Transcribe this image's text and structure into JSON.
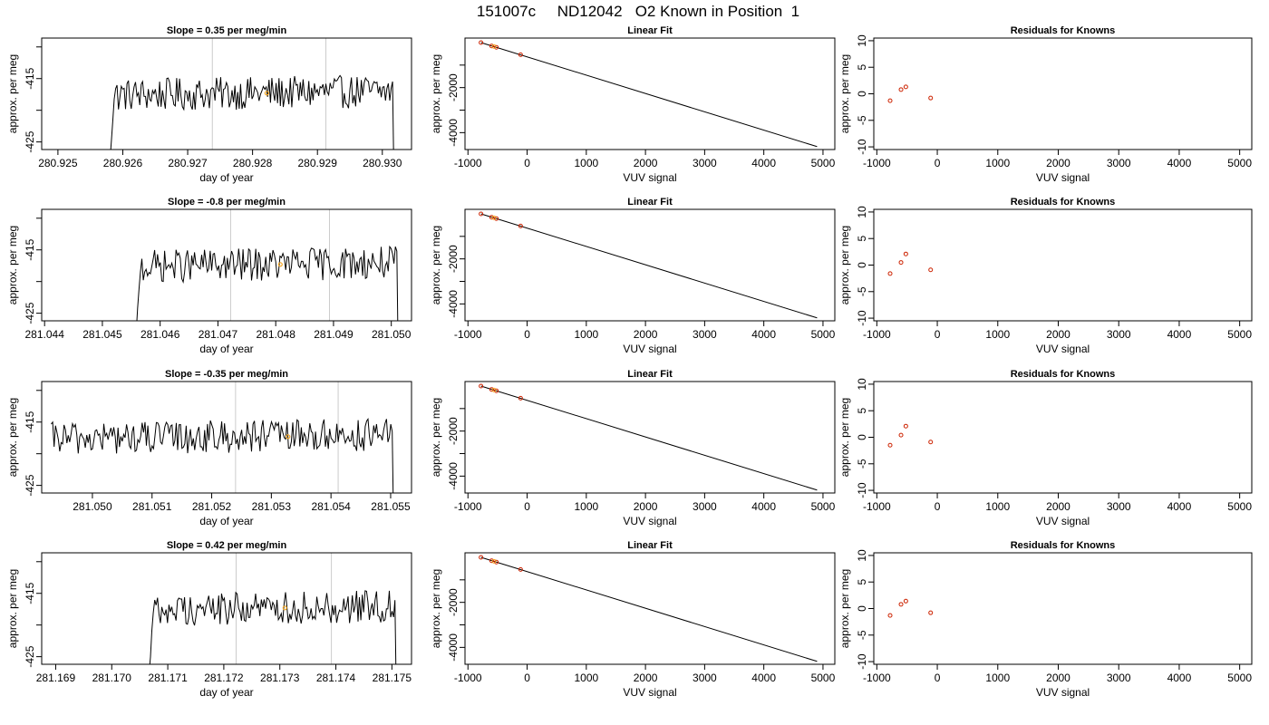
{
  "title": "151007c     ND12042   O2 Known in Position  1",
  "colors": {
    "trace": "#000000",
    "gridline": "#cccccc",
    "highlight": "#f5a623",
    "points": "#cc2200"
  },
  "chart_data": [
    {
      "type": "line",
      "title": "Slope =  0.35  per meg/min",
      "xlabel": "day of year",
      "ylabel": "approx. per meg",
      "xlim": [
        280.92475,
        280.93045
      ],
      "ylim": [
        -426.2,
        -408.6
      ],
      "xticks": [
        "280.925",
        "280.926",
        "280.927",
        "280.928",
        "280.929",
        "280.930"
      ],
      "yticks": [
        "-425",
        "",
        "-415",
        ""
      ],
      "vlines": [
        280.92738,
        280.92913
      ],
      "trace_start": 280.92578,
      "trace_end": 280.93018,
      "highlight_x": 280.92822
    },
    {
      "type": "line",
      "title": "Linear Fit",
      "xlabel": "VUV signal",
      "ylabel": "approx. per meg",
      "xlim": [
        -1050,
        5200
      ],
      "ylim": [
        -4750,
        200
      ],
      "xticks": [
        "-1000",
        "0",
        "1000",
        "2000",
        "3000",
        "4000",
        "5000"
      ],
      "yticks": [
        "-4000",
        "",
        "-2000",
        ""
      ],
      "line": {
        "x1": -780,
        "y1": 0,
        "x2": 4900,
        "y2": -4620
      },
      "points_x": [
        -780,
        -600,
        -520,
        -110
      ],
      "points_y": [
        0,
        -150,
        -210,
        -540
      ]
    },
    {
      "type": "scatter",
      "title": "Residuals for Knowns",
      "xlabel": "VUV signal",
      "ylabel": "approx. per meg",
      "xlim": [
        -1050,
        5200
      ],
      "ylim": [
        -10.5,
        10.5
      ],
      "xticks": [
        "-1000",
        "0",
        "1000",
        "2000",
        "3000",
        "4000",
        "5000"
      ],
      "yticks": [
        "-10",
        "-5",
        "0",
        "5",
        "10"
      ],
      "x": [
        -780,
        -600,
        -520,
        -110
      ],
      "y": [
        -1.3,
        0.8,
        1.3,
        -0.8
      ]
    },
    {
      "type": "line",
      "title": "Slope =  -0.8  per meg/min",
      "xlabel": "day of year",
      "ylabel": "approx. per meg",
      "xlim": [
        281.04395,
        281.05035
      ],
      "ylim": [
        -426.2,
        -408.6
      ],
      "xticks": [
        "281.044",
        "281.045",
        "281.046",
        "281.047",
        "281.048",
        "281.049",
        "281.050"
      ],
      "yticks": [
        "-425",
        "",
        "-415",
        ""
      ],
      "vlines": [
        281.04722,
        281.04893
      ],
      "trace_start": 281.04556,
      "trace_end": 281.05012,
      "highlight_x": 281.04808
    },
    {
      "type": "line",
      "title": "Linear Fit",
      "xlabel": "VUV signal",
      "ylabel": "approx. per meg",
      "xlim": [
        -1050,
        5200
      ],
      "ylim": [
        -4750,
        200
      ],
      "xticks": [
        "-1000",
        "0",
        "1000",
        "2000",
        "3000",
        "4000",
        "5000"
      ],
      "yticks": [
        "-4000",
        "",
        "-2000",
        ""
      ],
      "line": {
        "x1": -780,
        "y1": 0,
        "x2": 4900,
        "y2": -4620
      },
      "points_x": [
        -780,
        -600,
        -520,
        -110
      ],
      "points_y": [
        0,
        -150,
        -210,
        -540
      ]
    },
    {
      "type": "scatter",
      "title": "Residuals for Knowns",
      "xlabel": "VUV signal",
      "ylabel": "approx. per meg",
      "xlim": [
        -1050,
        5200
      ],
      "ylim": [
        -10.5,
        10.5
      ],
      "xticks": [
        "-1000",
        "0",
        "1000",
        "2000",
        "3000",
        "4000",
        "5000"
      ],
      "yticks": [
        "-10",
        "-5",
        "0",
        "5",
        "10"
      ],
      "x": [
        -780,
        -600,
        -520,
        -110
      ],
      "y": [
        -1.6,
        0.5,
        2.1,
        -0.9
      ]
    },
    {
      "type": "line",
      "title": "Slope =  -0.35  per meg/min",
      "xlabel": "day of year",
      "ylabel": "approx. per meg",
      "xlim": [
        281.04915,
        281.05535
      ],
      "ylim": [
        -426.2,
        -408.6
      ],
      "xticks": [
        "281.050",
        "281.051",
        "281.052",
        "281.053",
        "281.054",
        "281.055"
      ],
      "yticks": [
        "-425",
        "",
        "-415",
        ""
      ],
      "vlines": [
        281.0524,
        281.05412
      ],
      "trace_start": 281.04931,
      "trace_end": 281.05505,
      "highlight_x": 281.05328
    },
    {
      "type": "line",
      "title": "Linear Fit",
      "xlabel": "VUV signal",
      "ylabel": "approx. per meg",
      "xlim": [
        -1050,
        5200
      ],
      "ylim": [
        -4750,
        200
      ],
      "xticks": [
        "-1000",
        "0",
        "1000",
        "2000",
        "3000",
        "4000",
        "5000"
      ],
      "yticks": [
        "-4000",
        "",
        "-2000",
        ""
      ],
      "line": {
        "x1": -780,
        "y1": 0,
        "x2": 4900,
        "y2": -4620
      },
      "points_x": [
        -780,
        -600,
        -520,
        -110
      ],
      "points_y": [
        0,
        -150,
        -210,
        -540
      ]
    },
    {
      "type": "scatter",
      "title": "Residuals for Knowns",
      "xlabel": "VUV signal",
      "ylabel": "approx. per meg",
      "xlim": [
        -1050,
        5200
      ],
      "ylim": [
        -10.5,
        10.5
      ],
      "xticks": [
        "-1000",
        "0",
        "1000",
        "2000",
        "3000",
        "4000",
        "5000"
      ],
      "yticks": [
        "-10",
        "-5",
        "0",
        "5",
        "10"
      ],
      "x": [
        -780,
        -600,
        -520,
        -110
      ],
      "y": [
        -1.5,
        0.4,
        2.1,
        -0.9
      ]
    },
    {
      "type": "line",
      "title": "Slope =  0.42  per meg/min",
      "xlabel": "day of year",
      "ylabel": "approx. per meg",
      "xlim": [
        281.16875,
        281.17535
      ],
      "ylim": [
        -426.2,
        -408.6
      ],
      "xticks": [
        "281.169",
        "281.170",
        "281.171",
        "281.172",
        "281.173",
        "281.174",
        "281.175"
      ],
      "yticks": [
        "-425",
        "",
        "-415",
        ""
      ],
      "vlines": [
        281.17222,
        281.17392
      ],
      "trace_start": 281.17064,
      "trace_end": 281.17508,
      "highlight_x": 281.17309
    },
    {
      "type": "line",
      "title": "Linear Fit",
      "xlabel": "VUV signal",
      "ylabel": "approx. per meg",
      "xlim": [
        -1050,
        5200
      ],
      "ylim": [
        -4750,
        200
      ],
      "xticks": [
        "-1000",
        "0",
        "1000",
        "2000",
        "3000",
        "4000",
        "5000"
      ],
      "yticks": [
        "-4000",
        "",
        "-2000",
        ""
      ],
      "line": {
        "x1": -780,
        "y1": 0,
        "x2": 4900,
        "y2": -4620
      },
      "points_x": [
        -780,
        -600,
        -520,
        -110
      ],
      "points_y": [
        0,
        -150,
        -210,
        -540
      ]
    },
    {
      "type": "scatter",
      "title": "Residuals for Knowns",
      "xlabel": "VUV signal",
      "ylabel": "approx. per meg",
      "xlim": [
        -1050,
        5200
      ],
      "ylim": [
        -10.5,
        10.5
      ],
      "xticks": [
        "-1000",
        "0",
        "1000",
        "2000",
        "3000",
        "4000",
        "5000"
      ],
      "yticks": [
        "-10",
        "-5",
        "0",
        "5",
        "10"
      ],
      "x": [
        -780,
        -600,
        -520,
        -110
      ],
      "y": [
        -1.3,
        0.8,
        1.4,
        -0.8
      ]
    }
  ]
}
